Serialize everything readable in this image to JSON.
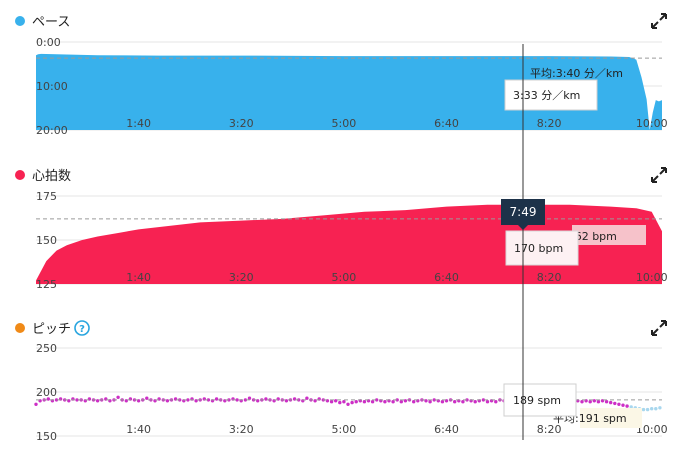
{
  "colors": {
    "pace": "#38b1ec",
    "heart": "#f72252",
    "cadence": "#cd2ec6",
    "cadence_dot": "#f08a17",
    "help": "#28a5df",
    "cursor": "#333333",
    "avg_line": "#9a9a9a",
    "time_badge": "#1d3249"
  },
  "icons": {
    "expand": "expand-arrows-icon",
    "help": "question-circle-icon"
  },
  "cursor": {
    "time_label": "7:49",
    "x_seconds": 469
  },
  "chart_data": [
    {
      "type": "area",
      "title": "ペース",
      "x_tick_labels": [
        "1:40",
        "3:20",
        "5:00",
        "6:40",
        "8:20",
        "10:00"
      ],
      "x_ticks_seconds": [
        100,
        200,
        300,
        400,
        500,
        600
      ],
      "xlim": [
        0,
        610
      ],
      "y_tick_labels": [
        "0:00",
        "10:00",
        "20:00"
      ],
      "y_ticks": [
        0,
        10,
        20
      ],
      "ylim": [
        0,
        20
      ],
      "y_inverted": true,
      "average_label": "平均:3:40 分／km",
      "average": 3.67,
      "tooltip": "3:33 分／km",
      "x": [
        0,
        2,
        5,
        20,
        60,
        120,
        200,
        300,
        400,
        470,
        500,
        560,
        578,
        585,
        590,
        595,
        598,
        601,
        604,
        607,
        610
      ],
      "y": [
        3.0,
        2.8,
        2.7,
        2.8,
        3.0,
        3.1,
        3.1,
        3.2,
        3.2,
        3.2,
        3.2,
        3.3,
        3.4,
        4.0,
        8.0,
        13.0,
        20.0,
        16.0,
        13.2,
        13.5,
        13.2
      ]
    },
    {
      "type": "area",
      "title": "心拍数",
      "x_tick_labels": [
        "1:40",
        "3:20",
        "5:00",
        "6:40",
        "8:20",
        "10:00"
      ],
      "x_ticks_seconds": [
        100,
        200,
        300,
        400,
        500,
        600
      ],
      "xlim": [
        0,
        610
      ],
      "y_tick_labels": [
        "125",
        "150",
        "175"
      ],
      "y_ticks": [
        125,
        150,
        175
      ],
      "ylim": [
        125,
        175
      ],
      "average_label": "平均:162 bpm",
      "average": 162,
      "tooltip": "170 bpm",
      "x": [
        0,
        10,
        20,
        30,
        45,
        60,
        80,
        100,
        130,
        160,
        200,
        240,
        280,
        320,
        360,
        400,
        440,
        480,
        520,
        560,
        585,
        600,
        610
      ],
      "y": [
        127,
        138,
        144,
        147,
        150,
        152,
        154,
        156,
        158,
        160,
        161,
        162,
        164,
        166,
        167,
        169,
        170,
        170,
        170,
        169,
        168,
        166,
        155
      ]
    },
    {
      "type": "scatter",
      "title": "ピッチ",
      "x_tick_labels": [
        "1:40",
        "3:20",
        "5:00",
        "6:40",
        "8:20",
        "10:00"
      ],
      "x_ticks_seconds": [
        100,
        200,
        300,
        400,
        500,
        600
      ],
      "xlim": [
        0,
        610
      ],
      "y_tick_labels": [
        "150",
        "200",
        "250"
      ],
      "y_ticks": [
        150,
        200,
        250
      ],
      "ylim": [
        150,
        250
      ],
      "average_label": "平均:191 spm",
      "average": 191,
      "tooltip": "189 spm",
      "x": [
        0,
        4,
        8,
        12,
        16,
        20,
        24,
        28,
        32,
        36,
        40,
        44,
        48,
        52,
        56,
        60,
        64,
        68,
        72,
        76,
        80,
        84,
        88,
        92,
        96,
        100,
        104,
        108,
        112,
        116,
        120,
        124,
        128,
        132,
        136,
        140,
        144,
        148,
        152,
        156,
        160,
        164,
        168,
        172,
        176,
        180,
        184,
        188,
        192,
        196,
        200,
        204,
        208,
        212,
        216,
        220,
        224,
        228,
        232,
        236,
        240,
        244,
        248,
        252,
        256,
        260,
        264,
        268,
        272,
        276,
        280,
        284,
        288,
        292,
        296,
        300,
        304,
        308,
        312,
        316,
        320,
        324,
        328,
        332,
        336,
        340,
        344,
        348,
        352,
        356,
        360,
        364,
        368,
        372,
        376,
        380,
        384,
        388,
        392,
        396,
        400,
        404,
        408,
        412,
        416,
        420,
        424,
        428,
        432,
        436,
        440,
        444,
        448,
        452,
        456,
        460,
        464,
        468,
        472,
        476,
        480,
        484,
        488,
        492,
        496,
        500,
        504,
        508,
        512,
        516,
        520,
        524,
        528,
        532,
        536,
        540,
        544,
        548,
        552,
        556,
        560,
        564,
        568,
        572,
        576,
        580,
        584,
        588,
        592,
        596,
        600,
        604,
        608
      ],
      "y": [
        186,
        190,
        191,
        192,
        190,
        191,
        192,
        191,
        190,
        192,
        191,
        191,
        190,
        192,
        191,
        190,
        191,
        192,
        190,
        191,
        194,
        191,
        190,
        192,
        191,
        190,
        191,
        193,
        191,
        190,
        192,
        191,
        190,
        191,
        192,
        191,
        190,
        191,
        192,
        190,
        191,
        192,
        191,
        190,
        192,
        191,
        190,
        191,
        192,
        191,
        190,
        191,
        193,
        191,
        190,
        191,
        192,
        191,
        190,
        192,
        191,
        190,
        191,
        192,
        191,
        190,
        193,
        191,
        190,
        192,
        191,
        190,
        189,
        190,
        188,
        189,
        186,
        188,
        189,
        190,
        189,
        190,
        189,
        191,
        190,
        189,
        190,
        189,
        191,
        189,
        190,
        191,
        189,
        190,
        191,
        190,
        189,
        191,
        190,
        189,
        190,
        191,
        189,
        190,
        189,
        191,
        190,
        189,
        190,
        191,
        189,
        190,
        189,
        191,
        190,
        189,
        190,
        189,
        190,
        189,
        191,
        190,
        189,
        190,
        189,
        190,
        189,
        190,
        189,
        190,
        191,
        189,
        190,
        189,
        190,
        189,
        190,
        189,
        190,
        189,
        188,
        187,
        186,
        185,
        184,
        183,
        182,
        181,
        180,
        180,
        181,
        181,
        182
      ]
    }
  ]
}
